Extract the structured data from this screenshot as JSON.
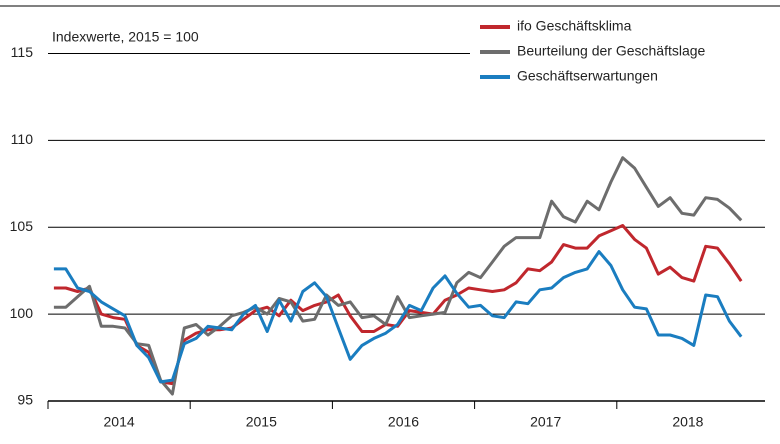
{
  "chart_data": {
    "type": "line",
    "subtitle": "Indexwerte, 2015 = 100",
    "categories": [
      null,
      null,
      null,
      null,
      null,
      "2014",
      null,
      null,
      null,
      null,
      null,
      null,
      null,
      null,
      null,
      null,
      null,
      "2015",
      null,
      null,
      null,
      null,
      null,
      null,
      null,
      null,
      null,
      null,
      null,
      "2016",
      null,
      null,
      null,
      null,
      null,
      null,
      null,
      null,
      null,
      null,
      null,
      "2017",
      null,
      null,
      null,
      null,
      null,
      null,
      null,
      null,
      null,
      null,
      null,
      "2018",
      null,
      null,
      null,
      null,
      null
    ],
    "series": [
      {
        "name": "ifo Geschäftsklima",
        "color": "#c0272d",
        "values": [
          101.5,
          101.5,
          101.3,
          101.5,
          100.0,
          99.8,
          99.7,
          98.2,
          97.8,
          96.1,
          96.0,
          98.5,
          98.9,
          99.1,
          99.1,
          99.2,
          99.7,
          100.2,
          100.4,
          99.9,
          100.8,
          100.2,
          100.5,
          100.7,
          101.1,
          99.9,
          99.0,
          99.0,
          99.4,
          99.3,
          100.2,
          100.1,
          100.0,
          100.8,
          101.1,
          101.5,
          101.4,
          101.3,
          101.4,
          101.8,
          102.6,
          102.5,
          103.0,
          104.0,
          103.8,
          103.8,
          104.5,
          104.8,
          105.1,
          104.3,
          103.8,
          102.3,
          102.7,
          102.1,
          101.9,
          103.9,
          103.8,
          102.9,
          101.9
        ]
      },
      {
        "name": "Beurteilung der Geschäftslage",
        "color": "#6d6d6d",
        "values": [
          100.4,
          100.4,
          101.0,
          101.6,
          99.3,
          99.3,
          99.2,
          98.3,
          98.2,
          96.2,
          95.4,
          99.2,
          99.4,
          98.8,
          99.3,
          99.9,
          100.1,
          100.4,
          100.0,
          100.9,
          100.7,
          99.6,
          99.7,
          101.1,
          100.5,
          100.7,
          99.8,
          99.9,
          99.4,
          101.0,
          99.8,
          99.9,
          100.0,
          100.1,
          101.8,
          102.4,
          102.1,
          103.0,
          103.9,
          104.4,
          104.4,
          104.4,
          106.5,
          105.6,
          105.3,
          106.5,
          106.0,
          107.6,
          109.0,
          108.4,
          107.3,
          106.2,
          106.7,
          105.8,
          105.7,
          106.7,
          106.6,
          106.1,
          105.4
        ]
      },
      {
        "name": "Geschäftserwartungen",
        "color": "#1a7dc0",
        "values": [
          102.6,
          102.6,
          101.5,
          101.3,
          100.7,
          100.3,
          99.9,
          98.2,
          97.5,
          96.1,
          96.2,
          98.3,
          98.6,
          99.3,
          99.2,
          99.1,
          100.0,
          100.5,
          99.0,
          100.8,
          99.6,
          101.3,
          101.8,
          101.0,
          99.2,
          97.4,
          98.2,
          98.6,
          98.9,
          99.4,
          100.5,
          100.2,
          101.5,
          102.2,
          101.2,
          100.4,
          100.5,
          99.9,
          99.8,
          100.7,
          100.6,
          101.4,
          101.5,
          102.1,
          102.4,
          102.6,
          103.6,
          102.8,
          101.4,
          100.4,
          100.3,
          98.8,
          98.8,
          98.6,
          98.2,
          101.1,
          101.0,
          99.6,
          98.7
        ]
      }
    ],
    "ylim": [
      95,
      117.5
    ],
    "yticks": [
      95,
      100,
      105,
      110,
      115
    ],
    "grid": true,
    "legend": "top-right"
  }
}
